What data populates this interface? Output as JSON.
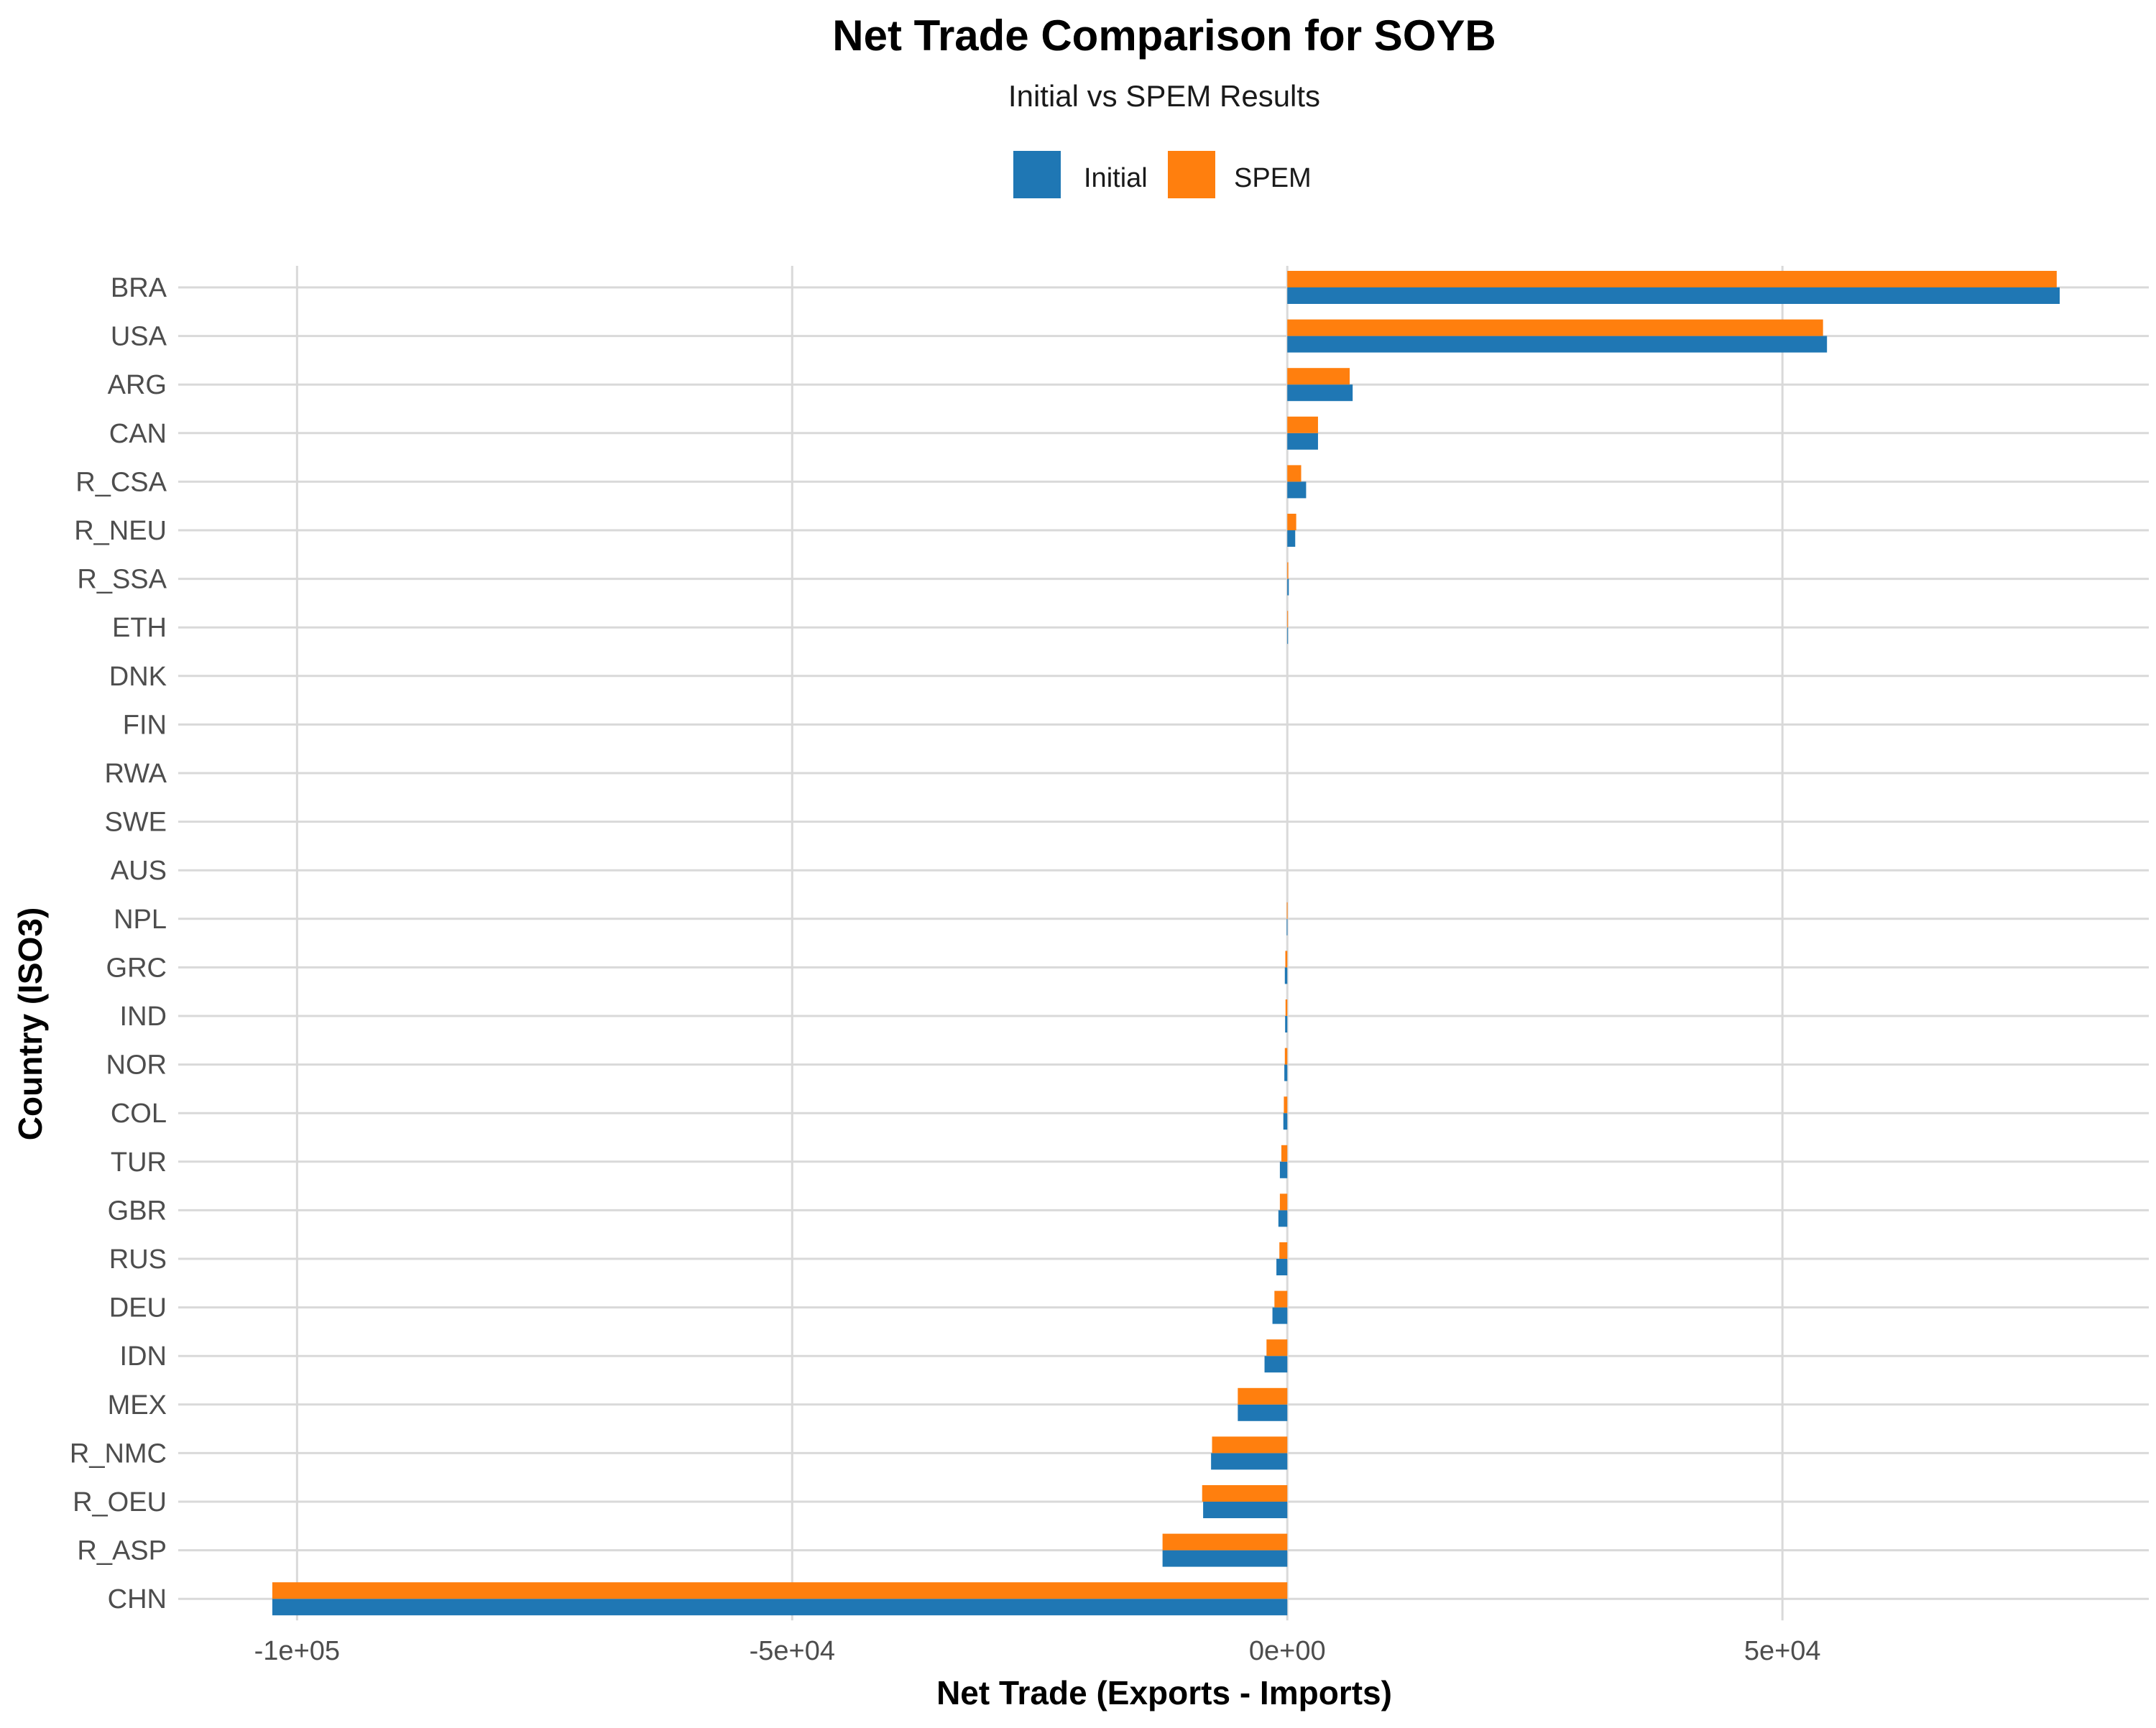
{
  "chart_data": {
    "type": "bar",
    "orientation": "horizontal",
    "title": "Net Trade Comparison for SOYB",
    "subtitle": "Initial vs SPEM Results",
    "xlabel": "Net Trade (Exports - Imports)",
    "ylabel": "Country (ISO3)",
    "xlim": [
      -112000,
      87000
    ],
    "xticks": [
      -100000,
      -50000,
      0,
      50000
    ],
    "xtick_labels": [
      "-1e+05",
      "-5e+04",
      "0e+00",
      "5e+04"
    ],
    "grid": true,
    "legend_position": "top",
    "categories": [
      "BRA",
      "USA",
      "ARG",
      "CAN",
      "R_CSA",
      "R_NEU",
      "R_SSA",
      "ETH",
      "DNK",
      "FIN",
      "RWA",
      "SWE",
      "AUS",
      "NPL",
      "GRC",
      "IND",
      "NOR",
      "COL",
      "TUR",
      "GBR",
      "RUS",
      "DEU",
      "IDN",
      "MEX",
      "R_NMC",
      "R_OEU",
      "R_ASP",
      "CHN"
    ],
    "series": [
      {
        "name": "Initial",
        "color": "#1f77b4",
        "values": [
          78000,
          54500,
          6600,
          3100,
          1900,
          800,
          150,
          60,
          0,
          0,
          0,
          0,
          0,
          -60,
          -250,
          -220,
          -300,
          -400,
          -750,
          -900,
          -1100,
          -1500,
          -2300,
          -5000,
          -7700,
          -8500,
          -12600,
          -102500
        ]
      },
      {
        "name": "SPEM",
        "color": "#ff7f0e",
        "values": [
          77700,
          54100,
          6300,
          3100,
          1400,
          900,
          100,
          40,
          0,
          0,
          0,
          0,
          0,
          -50,
          -200,
          -180,
          -250,
          -350,
          -600,
          -750,
          -800,
          -1300,
          -2100,
          -5000,
          -7600,
          -8600,
          -12600,
          -102500
        ]
      }
    ]
  }
}
